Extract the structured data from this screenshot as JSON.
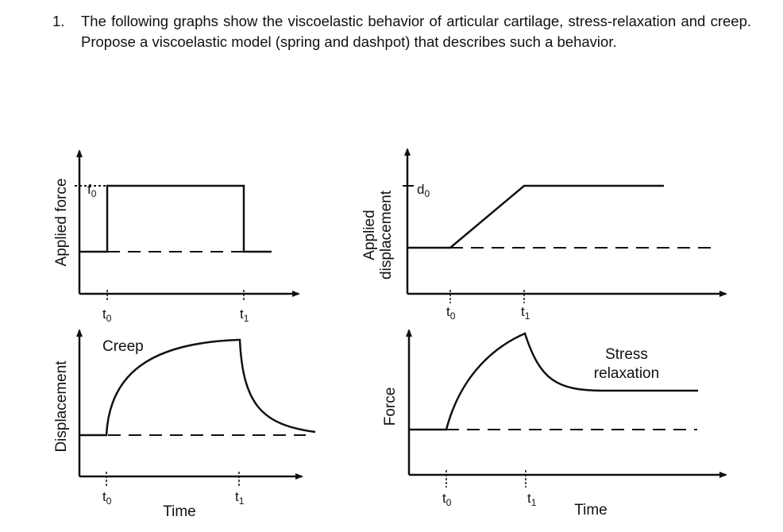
{
  "question": {
    "number": "1.",
    "text": "The following graphs show the viscoelastic behavior of articular cartilage, stress-relaxation and creep. Propose a viscoelastic model (spring and dashpot) that describes such a behavior."
  },
  "figure": {
    "panels": [
      {
        "id": "applied-force",
        "ylabel": [
          "Applied force"
        ],
        "level_label": "f",
        "level_subscript": "0",
        "tick_labels": [
          {
            "main": "t",
            "sub": "0"
          },
          {
            "main": "t",
            "sub": "1"
          }
        ],
        "xlabel": "",
        "annotation": [],
        "curve": "square-pulse"
      },
      {
        "id": "applied-displacement",
        "ylabel": [
          "Applied",
          "displacement"
        ],
        "level_label": "d",
        "level_subscript": "0",
        "tick_labels": [
          {
            "main": "t",
            "sub": "0"
          },
          {
            "main": "t",
            "sub": "1"
          }
        ],
        "xlabel": "",
        "annotation": [],
        "curve": "ramp-and-hold"
      },
      {
        "id": "displacement-creep",
        "ylabel": [
          "Displacement"
        ],
        "level_label": "",
        "level_subscript": "",
        "tick_labels": [
          {
            "main": "t",
            "sub": "0"
          },
          {
            "main": "t",
            "sub": "1"
          }
        ],
        "xlabel": "Time",
        "annotation": [
          "Creep"
        ],
        "curve": "creep-and-recovery"
      },
      {
        "id": "force-relaxation",
        "ylabel": [
          "Force"
        ],
        "level_label": "",
        "level_subscript": "",
        "tick_labels": [
          {
            "main": "t",
            "sub": "0"
          },
          {
            "main": "t",
            "sub": "1"
          }
        ],
        "xlabel": "Time",
        "annotation": [
          "Stress",
          "relaxation"
        ],
        "curve": "stress-relaxation"
      }
    ]
  }
}
